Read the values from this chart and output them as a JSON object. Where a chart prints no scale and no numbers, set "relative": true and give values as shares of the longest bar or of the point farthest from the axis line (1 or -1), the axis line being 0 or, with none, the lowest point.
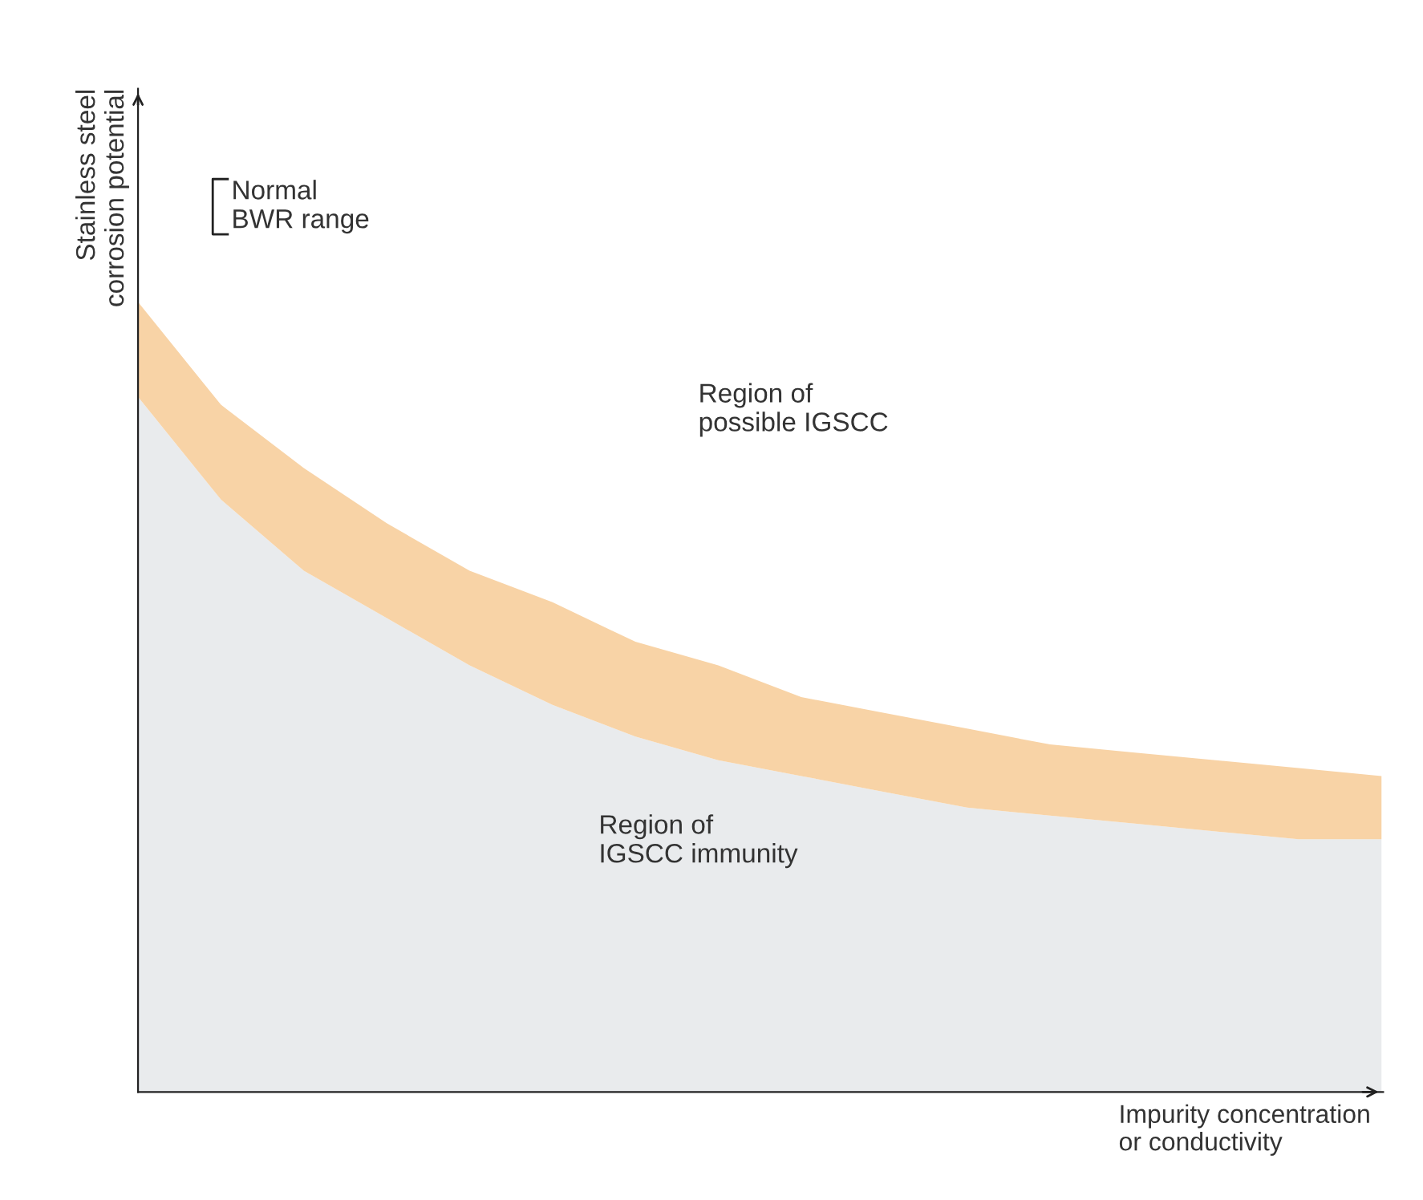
{
  "chart_data": {
    "type": "area",
    "relative": true,
    "stacked": true,
    "xlabel": "Impurity concentration\nor conductivity",
    "ylabel": "Stainless steel\ncorrosion potential",
    "categories": [
      null,
      null,
      null,
      null,
      null,
      null,
      null,
      null,
      null,
      null,
      null,
      null,
      null,
      null,
      null,
      null
    ],
    "series": [
      {
        "color": "#e9ebed",
        "values": [
          0.88,
          0.75,
          0.66,
          0.6,
          0.54,
          0.49,
          0.45,
          0.42,
          0.4,
          0.38,
          0.36,
          0.35,
          0.34,
          0.33,
          0.32,
          0.32
        ]
      },
      {
        "color": "#f8d3a6",
        "values": [
          0.12,
          0.12,
          0.13,
          0.12,
          0.12,
          0.13,
          0.12,
          0.12,
          0.1,
          0.1,
          0.1,
          0.09,
          0.09,
          0.09,
          0.09,
          0.08
        ]
      }
    ],
    "annotations": [
      "Normal\nBWR range",
      "Region of\npossible IGSCC",
      "Region of\nIGSCC immunity"
    ],
    "grid": false,
    "legend": false
  }
}
